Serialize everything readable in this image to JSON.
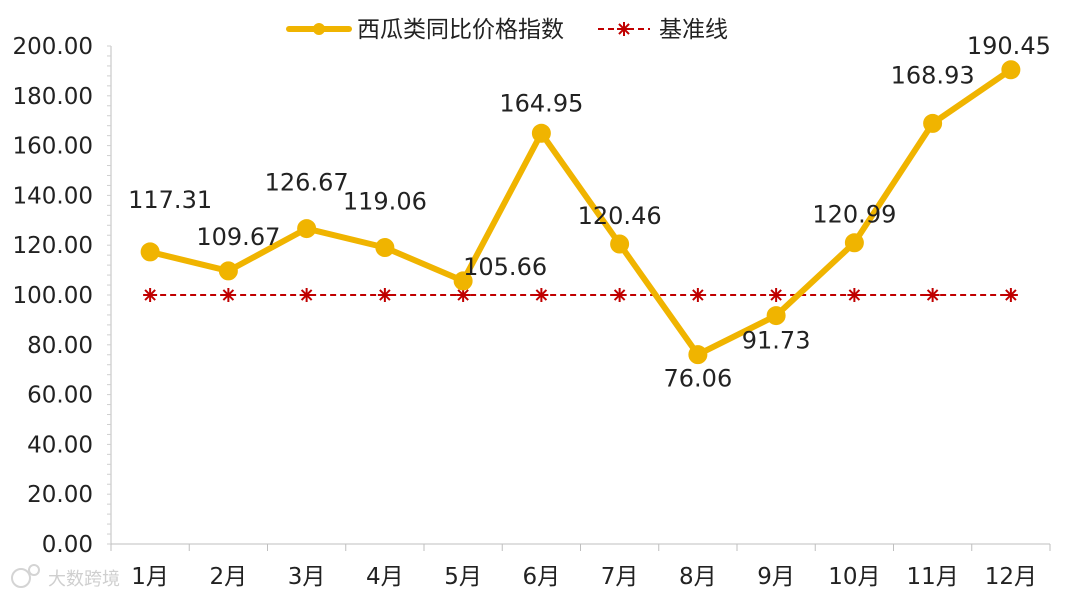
{
  "chart_data": {
    "type": "line",
    "categories": [
      "1月",
      "2月",
      "3月",
      "4月",
      "5月",
      "6月",
      "7月",
      "8月",
      "9月",
      "10月",
      "11月",
      "12月"
    ],
    "series": [
      {
        "name": "西瓜类同比价格指数",
        "values": [
          117.31,
          109.67,
          126.67,
          119.06,
          105.66,
          164.95,
          120.46,
          76.06,
          91.73,
          120.99,
          168.93,
          190.45
        ],
        "labels": [
          "117.31",
          "109.67",
          "126.67",
          "119.06",
          "105.66",
          "164.95",
          "120.46",
          "76.06",
          "91.73",
          "120.99",
          "168.93",
          "190.45"
        ],
        "color": "#F0B400",
        "marker": "circle"
      },
      {
        "name": "基准线",
        "values": [
          100,
          100,
          100,
          100,
          100,
          100,
          100,
          100,
          100,
          100,
          100,
          100
        ],
        "color": "#C00000",
        "marker": "asterisk",
        "dashed": true
      }
    ],
    "ylim": [
      0,
      200
    ],
    "yticks": [
      "0.00",
      "20.00",
      "40.00",
      "60.00",
      "80.00",
      "100.00",
      "120.00",
      "140.00",
      "160.00",
      "180.00",
      "200.00"
    ],
    "legend_position": "top-center",
    "grid": false
  },
  "watermark": {
    "text": "大数跨境"
  }
}
